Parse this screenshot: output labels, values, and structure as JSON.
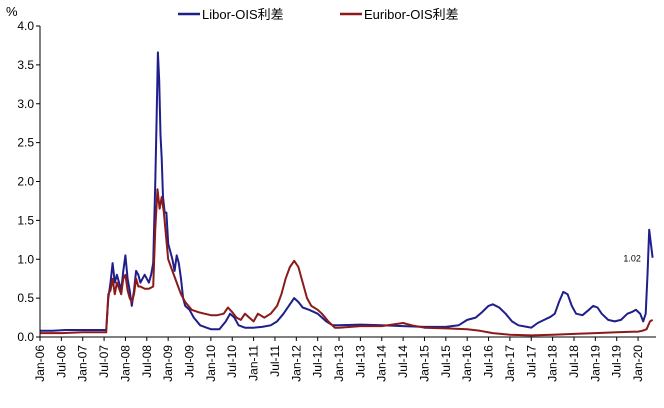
{
  "chart_data": {
    "type": "line",
    "y_unit": "%",
    "ylim": [
      0,
      4.0
    ],
    "yticks": [
      0.0,
      0.5,
      1.0,
      1.5,
      2.0,
      2.5,
      3.0,
      3.5,
      4.0
    ],
    "ytick_labels": [
      "0.0",
      "0.5",
      "1.0",
      "1.5",
      "2.0",
      "2.5",
      "3.0",
      "3.5",
      "4.0"
    ],
    "xlim": [
      2006.0,
      2020.42
    ],
    "xticks": [
      {
        "label": "Jan-06",
        "t": 2006.0
      },
      {
        "label": "Jul-06",
        "t": 2006.5
      },
      {
        "label": "Jan-07",
        "t": 2007.0
      },
      {
        "label": "Jul-07",
        "t": 2007.5
      },
      {
        "label": "Jan-08",
        "t": 2008.0
      },
      {
        "label": "Jul-08",
        "t": 2008.5
      },
      {
        "label": "Jan-09",
        "t": 2009.0
      },
      {
        "label": "Jul-09",
        "t": 2009.5
      },
      {
        "label": "Jan-10",
        "t": 2010.0
      },
      {
        "label": "Jul-10",
        "t": 2010.5
      },
      {
        "label": "Jan-11",
        "t": 2011.0
      },
      {
        "label": "Jul-11",
        "t": 2011.5
      },
      {
        "label": "Jan-12",
        "t": 2012.0
      },
      {
        "label": "Jul-12",
        "t": 2012.5
      },
      {
        "label": "Jan-13",
        "t": 2013.0
      },
      {
        "label": "Jul-13",
        "t": 2013.5
      },
      {
        "label": "Jan-14",
        "t": 2014.0
      },
      {
        "label": "Jul-14",
        "t": 2014.5
      },
      {
        "label": "Jan-15",
        "t": 2015.0
      },
      {
        "label": "Jul-15",
        "t": 2015.5
      },
      {
        "label": "Jan-16",
        "t": 2016.0
      },
      {
        "label": "Jul-16",
        "t": 2016.5
      },
      {
        "label": "Jan-17",
        "t": 2017.0
      },
      {
        "label": "Jul-17",
        "t": 2017.5
      },
      {
        "label": "Jan-18",
        "t": 2018.0
      },
      {
        "label": "Jul-18",
        "t": 2018.5
      },
      {
        "label": "Jan-19",
        "t": 2019.0
      },
      {
        "label": "Jul-19",
        "t": 2019.5
      },
      {
        "label": "Jan-20",
        "t": 2020.0
      }
    ],
    "legend_position": "top",
    "annotation": {
      "text": "1.02",
      "series": "Libor-OIS利差",
      "x": 2020.3,
      "y": 1.02
    },
    "series": [
      {
        "name": "Libor-OIS利差",
        "color": "#1f1f8c",
        "points": [
          [
            2006.0,
            0.08
          ],
          [
            2006.3,
            0.08
          ],
          [
            2006.6,
            0.09
          ],
          [
            2007.0,
            0.09
          ],
          [
            2007.4,
            0.09
          ],
          [
            2007.55,
            0.09
          ],
          [
            2007.6,
            0.5
          ],
          [
            2007.65,
            0.7
          ],
          [
            2007.7,
            0.95
          ],
          [
            2007.75,
            0.7
          ],
          [
            2007.8,
            0.8
          ],
          [
            2007.9,
            0.6
          ],
          [
            2007.95,
            0.85
          ],
          [
            2008.0,
            1.05
          ],
          [
            2008.05,
            0.75
          ],
          [
            2008.1,
            0.6
          ],
          [
            2008.15,
            0.4
          ],
          [
            2008.2,
            0.6
          ],
          [
            2008.25,
            0.85
          ],
          [
            2008.3,
            0.8
          ],
          [
            2008.35,
            0.7
          ],
          [
            2008.4,
            0.75
          ],
          [
            2008.45,
            0.8
          ],
          [
            2008.5,
            0.75
          ],
          [
            2008.55,
            0.7
          ],
          [
            2008.6,
            0.8
          ],
          [
            2008.65,
            0.95
          ],
          [
            2008.7,
            2.0
          ],
          [
            2008.73,
            2.8
          ],
          [
            2008.76,
            3.66
          ],
          [
            2008.79,
            3.3
          ],
          [
            2008.82,
            2.6
          ],
          [
            2008.85,
            2.3
          ],
          [
            2008.88,
            1.8
          ],
          [
            2008.92,
            1.6
          ],
          [
            2008.96,
            1.6
          ],
          [
            2009.0,
            1.2
          ],
          [
            2009.05,
            1.1
          ],
          [
            2009.1,
            1.0
          ],
          [
            2009.15,
            0.85
          ],
          [
            2009.2,
            1.05
          ],
          [
            2009.25,
            0.95
          ],
          [
            2009.3,
            0.75
          ],
          [
            2009.35,
            0.5
          ],
          [
            2009.4,
            0.4
          ],
          [
            2009.5,
            0.35
          ],
          [
            2009.6,
            0.25
          ],
          [
            2009.75,
            0.15
          ],
          [
            2009.9,
            0.12
          ],
          [
            2010.0,
            0.1
          ],
          [
            2010.2,
            0.1
          ],
          [
            2010.35,
            0.2
          ],
          [
            2010.45,
            0.3
          ],
          [
            2010.55,
            0.25
          ],
          [
            2010.65,
            0.15
          ],
          [
            2010.8,
            0.12
          ],
          [
            2011.0,
            0.12
          ],
          [
            2011.2,
            0.13
          ],
          [
            2011.4,
            0.15
          ],
          [
            2011.55,
            0.2
          ],
          [
            2011.7,
            0.3
          ],
          [
            2011.85,
            0.42
          ],
          [
            2011.95,
            0.5
          ],
          [
            2012.05,
            0.45
          ],
          [
            2012.15,
            0.38
          ],
          [
            2012.3,
            0.35
          ],
          [
            2012.5,
            0.3
          ],
          [
            2012.7,
            0.2
          ],
          [
            2012.85,
            0.15
          ],
          [
            2013.0,
            0.15
          ],
          [
            2013.5,
            0.16
          ],
          [
            2014.0,
            0.15
          ],
          [
            2014.5,
            0.14
          ],
          [
            2015.0,
            0.13
          ],
          [
            2015.5,
            0.13
          ],
          [
            2015.8,
            0.15
          ],
          [
            2016.0,
            0.22
          ],
          [
            2016.2,
            0.25
          ],
          [
            2016.35,
            0.32
          ],
          [
            2016.5,
            0.4
          ],
          [
            2016.6,
            0.42
          ],
          [
            2016.75,
            0.38
          ],
          [
            2016.9,
            0.3
          ],
          [
            2017.05,
            0.2
          ],
          [
            2017.2,
            0.15
          ],
          [
            2017.4,
            0.13
          ],
          [
            2017.5,
            0.12
          ],
          [
            2017.65,
            0.18
          ],
          [
            2017.8,
            0.22
          ],
          [
            2017.95,
            0.26
          ],
          [
            2018.05,
            0.3
          ],
          [
            2018.15,
            0.45
          ],
          [
            2018.25,
            0.58
          ],
          [
            2018.35,
            0.55
          ],
          [
            2018.45,
            0.4
          ],
          [
            2018.55,
            0.3
          ],
          [
            2018.7,
            0.28
          ],
          [
            2018.85,
            0.35
          ],
          [
            2018.95,
            0.4
          ],
          [
            2019.05,
            0.38
          ],
          [
            2019.15,
            0.3
          ],
          [
            2019.3,
            0.22
          ],
          [
            2019.45,
            0.2
          ],
          [
            2019.6,
            0.22
          ],
          [
            2019.75,
            0.3
          ],
          [
            2019.85,
            0.32
          ],
          [
            2019.95,
            0.35
          ],
          [
            2020.05,
            0.3
          ],
          [
            2020.12,
            0.2
          ],
          [
            2020.18,
            0.3
          ],
          [
            2020.22,
            0.8
          ],
          [
            2020.26,
            1.38
          ],
          [
            2020.3,
            1.2
          ],
          [
            2020.34,
            1.02
          ]
        ]
      },
      {
        "name": "Euribor-OIS利差",
        "color": "#8c1a1a",
        "points": [
          [
            2006.0,
            0.05
          ],
          [
            2006.5,
            0.05
          ],
          [
            2007.0,
            0.06
          ],
          [
            2007.4,
            0.06
          ],
          [
            2007.55,
            0.06
          ],
          [
            2007.6,
            0.55
          ],
          [
            2007.65,
            0.6
          ],
          [
            2007.7,
            0.75
          ],
          [
            2007.75,
            0.55
          ],
          [
            2007.8,
            0.7
          ],
          [
            2007.9,
            0.55
          ],
          [
            2007.95,
            0.75
          ],
          [
            2008.0,
            0.8
          ],
          [
            2008.05,
            0.6
          ],
          [
            2008.1,
            0.5
          ],
          [
            2008.15,
            0.45
          ],
          [
            2008.2,
            0.55
          ],
          [
            2008.25,
            0.75
          ],
          [
            2008.3,
            0.65
          ],
          [
            2008.35,
            0.65
          ],
          [
            2008.45,
            0.62
          ],
          [
            2008.55,
            0.62
          ],
          [
            2008.65,
            0.65
          ],
          [
            2008.7,
            1.4
          ],
          [
            2008.75,
            1.9
          ],
          [
            2008.8,
            1.65
          ],
          [
            2008.85,
            1.8
          ],
          [
            2008.9,
            1.6
          ],
          [
            2008.95,
            1.3
          ],
          [
            2009.0,
            1.0
          ],
          [
            2009.1,
            0.85
          ],
          [
            2009.2,
            0.7
          ],
          [
            2009.3,
            0.55
          ],
          [
            2009.4,
            0.45
          ],
          [
            2009.55,
            0.35
          ],
          [
            2009.7,
            0.32
          ],
          [
            2009.85,
            0.3
          ],
          [
            2010.0,
            0.28
          ],
          [
            2010.15,
            0.28
          ],
          [
            2010.3,
            0.3
          ],
          [
            2010.4,
            0.38
          ],
          [
            2010.5,
            0.32
          ],
          [
            2010.6,
            0.25
          ],
          [
            2010.7,
            0.22
          ],
          [
            2010.8,
            0.3
          ],
          [
            2010.9,
            0.25
          ],
          [
            2011.0,
            0.2
          ],
          [
            2011.1,
            0.3
          ],
          [
            2011.25,
            0.25
          ],
          [
            2011.4,
            0.3
          ],
          [
            2011.55,
            0.4
          ],
          [
            2011.65,
            0.55
          ],
          [
            2011.75,
            0.75
          ],
          [
            2011.85,
            0.9
          ],
          [
            2011.95,
            0.98
          ],
          [
            2012.05,
            0.9
          ],
          [
            2012.15,
            0.7
          ],
          [
            2012.25,
            0.5
          ],
          [
            2012.35,
            0.4
          ],
          [
            2012.5,
            0.35
          ],
          [
            2012.6,
            0.3
          ],
          [
            2012.75,
            0.2
          ],
          [
            2012.9,
            0.12
          ],
          [
            2013.0,
            0.12
          ],
          [
            2013.5,
            0.14
          ],
          [
            2014.0,
            0.14
          ],
          [
            2014.5,
            0.18
          ],
          [
            2014.7,
            0.15
          ],
          [
            2015.0,
            0.12
          ],
          [
            2015.5,
            0.11
          ],
          [
            2016.0,
            0.1
          ],
          [
            2016.3,
            0.08
          ],
          [
            2016.6,
            0.05
          ],
          [
            2017.0,
            0.03
          ],
          [
            2017.5,
            0.02
          ],
          [
            2018.0,
            0.03
          ],
          [
            2018.5,
            0.04
          ],
          [
            2019.0,
            0.05
          ],
          [
            2019.5,
            0.06
          ],
          [
            2020.0,
            0.07
          ],
          [
            2020.1,
            0.08
          ],
          [
            2020.2,
            0.1
          ],
          [
            2020.28,
            0.2
          ],
          [
            2020.34,
            0.22
          ]
        ]
      }
    ]
  }
}
